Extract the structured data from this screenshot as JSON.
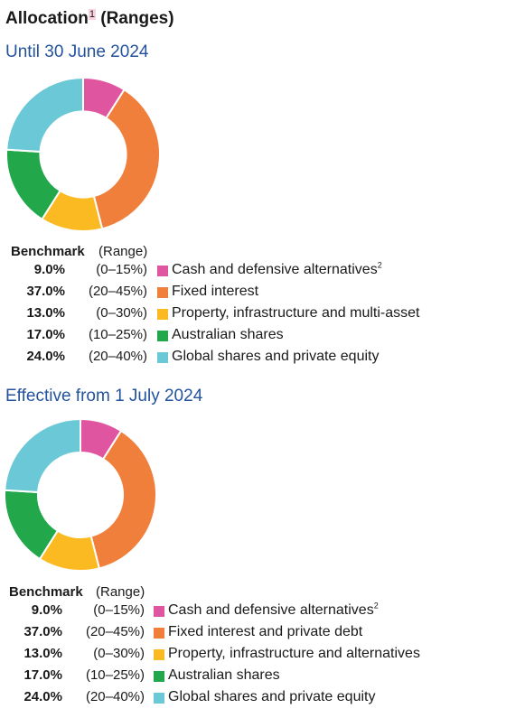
{
  "page": {
    "title": "Allocation",
    "title_sup": "1",
    "title_suffix": " (Ranges)"
  },
  "sections": [
    {
      "subtitle": "Until 30 June 2024",
      "header_benchmark": "Benchmark",
      "header_range": "(Range)",
      "rows": [
        {
          "value": "9.0%",
          "range": "(0–15%)",
          "label": "Cash and defensive alternatives",
          "sup": "2",
          "color": "#e0559f"
        },
        {
          "value": "37.0%",
          "range": "(20–45%)",
          "label": "Fixed interest",
          "sup": "",
          "color": "#f07f3c"
        },
        {
          "value": "13.0%",
          "range": "(0–30%)",
          "label": "Property, infrastructure and multi-asset",
          "sup": "",
          "color": "#fbba22"
        },
        {
          "value": "17.0%",
          "range": "(10–25%)",
          "label": "Australian shares",
          "sup": "",
          "color": "#22a84a"
        },
        {
          "value": "24.0%",
          "range": "(20–40%)",
          "label": "Global shares and private equity",
          "sup": "",
          "color": "#6bc8d6"
        }
      ]
    },
    {
      "subtitle": "Effective from 1 July 2024",
      "header_benchmark": "Benchmark",
      "header_range": "(Range)",
      "rows": [
        {
          "value": "9.0%",
          "range": "(0–15%)",
          "label": "Cash and defensive alternatives",
          "sup": "2",
          "color": "#e0559f"
        },
        {
          "value": "37.0%",
          "range": "(20–45%)",
          "label": "Fixed interest and private debt",
          "sup": "",
          "color": "#f07f3c"
        },
        {
          "value": "13.0%",
          "range": "(0–30%)",
          "label": "Property, infrastructure and alternatives",
          "sup": "",
          "color": "#fbba22"
        },
        {
          "value": "17.0%",
          "range": "(10–25%)",
          "label": "Australian shares",
          "sup": "",
          "color": "#22a84a"
        },
        {
          "value": "24.0%",
          "range": "(20–40%)",
          "label": "Global shares and private equity",
          "sup": "",
          "color": "#6bc8d6"
        }
      ]
    }
  ],
  "chart_data": [
    {
      "type": "pie",
      "donut": true,
      "categories": [
        "Cash and defensive alternatives",
        "Fixed interest",
        "Property, infrastructure and multi-asset",
        "Australian shares",
        "Global shares and private equity"
      ],
      "values": [
        9.0,
        37.0,
        13.0,
        17.0,
        24.0
      ],
      "colors": [
        "#e0559f",
        "#f07f3c",
        "#fbba22",
        "#22a84a",
        "#6bc8d6"
      ]
    },
    {
      "type": "pie",
      "donut": true,
      "categories": [
        "Cash and defensive alternatives",
        "Fixed interest and private debt",
        "Property, infrastructure and alternatives",
        "Australian shares",
        "Global shares and private equity"
      ],
      "values": [
        9.0,
        37.0,
        13.0,
        17.0,
        24.0
      ],
      "colors": [
        "#e0559f",
        "#f07f3c",
        "#fbba22",
        "#22a84a",
        "#6bc8d6"
      ]
    }
  ]
}
